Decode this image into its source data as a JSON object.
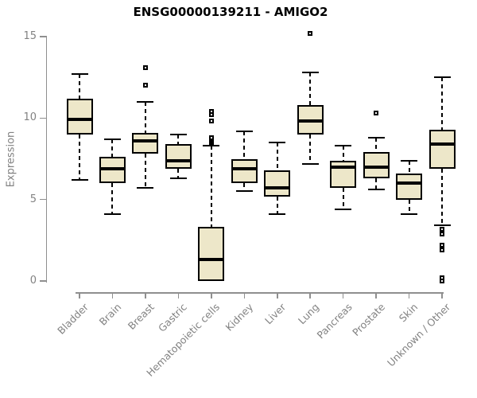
{
  "title_bar": {
    "title": "ENSG00000139211 - AMIGO2"
  },
  "chart_data": {
    "type": "boxplot",
    "title": "ENSG00000139211 - AMIGO2",
    "xlabel": "",
    "ylabel": "Expression",
    "ylim": [
      0,
      15
    ],
    "yticks": [
      0,
      5,
      10,
      15
    ],
    "grid": false,
    "legend": "none",
    "categories": [
      "Bladder",
      "Brain",
      "Breast",
      "Gastric",
      "Hematopoietic cells",
      "Kidney",
      "Liver",
      "Lung",
      "Pancreas",
      "Prostate",
      "Skin",
      "Unknown / Other"
    ],
    "series": [
      {
        "label": "Bladder",
        "low": 6.2,
        "q1": 9.0,
        "median": 9.9,
        "q3": 11.2,
        "high": 12.7,
        "outliers": []
      },
      {
        "label": "Brain",
        "low": 4.1,
        "q1": 6.0,
        "median": 6.9,
        "q3": 7.6,
        "high": 8.7,
        "outliers": []
      },
      {
        "label": "Breast",
        "low": 5.7,
        "q1": 7.8,
        "median": 8.6,
        "q3": 9.1,
        "high": 11.0,
        "outliers": [
          13.1,
          12.0
        ]
      },
      {
        "label": "Gastric",
        "low": 6.3,
        "q1": 6.9,
        "median": 7.4,
        "q3": 8.4,
        "high": 9.0,
        "outliers": []
      },
      {
        "label": "Hematopoietic cells",
        "low": 0.0,
        "q1": 0.0,
        "median": 1.3,
        "q3": 3.3,
        "high": 8.3,
        "outliers": [
          10.4,
          10.2,
          9.8,
          8.8,
          8.6,
          8.5
        ]
      },
      {
        "label": "Kidney",
        "low": 5.5,
        "q1": 6.0,
        "median": 6.9,
        "q3": 7.5,
        "high": 9.2,
        "outliers": []
      },
      {
        "label": "Liver",
        "low": 4.1,
        "q1": 5.2,
        "median": 5.7,
        "q3": 6.8,
        "high": 8.5,
        "outliers": []
      },
      {
        "label": "Lung",
        "low": 7.2,
        "q1": 9.0,
        "median": 9.8,
        "q3": 10.8,
        "high": 12.8,
        "outliers": [
          15.2
        ]
      },
      {
        "label": "Pancreas",
        "low": 4.4,
        "q1": 5.7,
        "median": 7.0,
        "q3": 7.4,
        "high": 8.3,
        "outliers": []
      },
      {
        "label": "Prostate",
        "low": 5.6,
        "q1": 6.3,
        "median": 7.0,
        "q3": 7.9,
        "high": 8.8,
        "outliers": [
          10.3
        ]
      },
      {
        "label": "Skin",
        "low": 4.1,
        "q1": 5.0,
        "median": 6.0,
        "q3": 6.6,
        "high": 7.4,
        "outliers": []
      },
      {
        "label": "Unknown / Other",
        "low": 3.4,
        "q1": 6.9,
        "median": 8.4,
        "q3": 9.3,
        "high": 12.5,
        "outliers": [
          3.2,
          2.9,
          2.2,
          1.9,
          0.2,
          0.0
        ]
      }
    ],
    "colors": {
      "box_fill": "#EDE7C9",
      "box_border": "#000000",
      "median": "#000000",
      "whisker": "#000000",
      "outlier": "#000000",
      "axis": "#8F8F8F",
      "tick_label": "#828282",
      "title": "#000000",
      "background": "#FFFFFF"
    }
  }
}
